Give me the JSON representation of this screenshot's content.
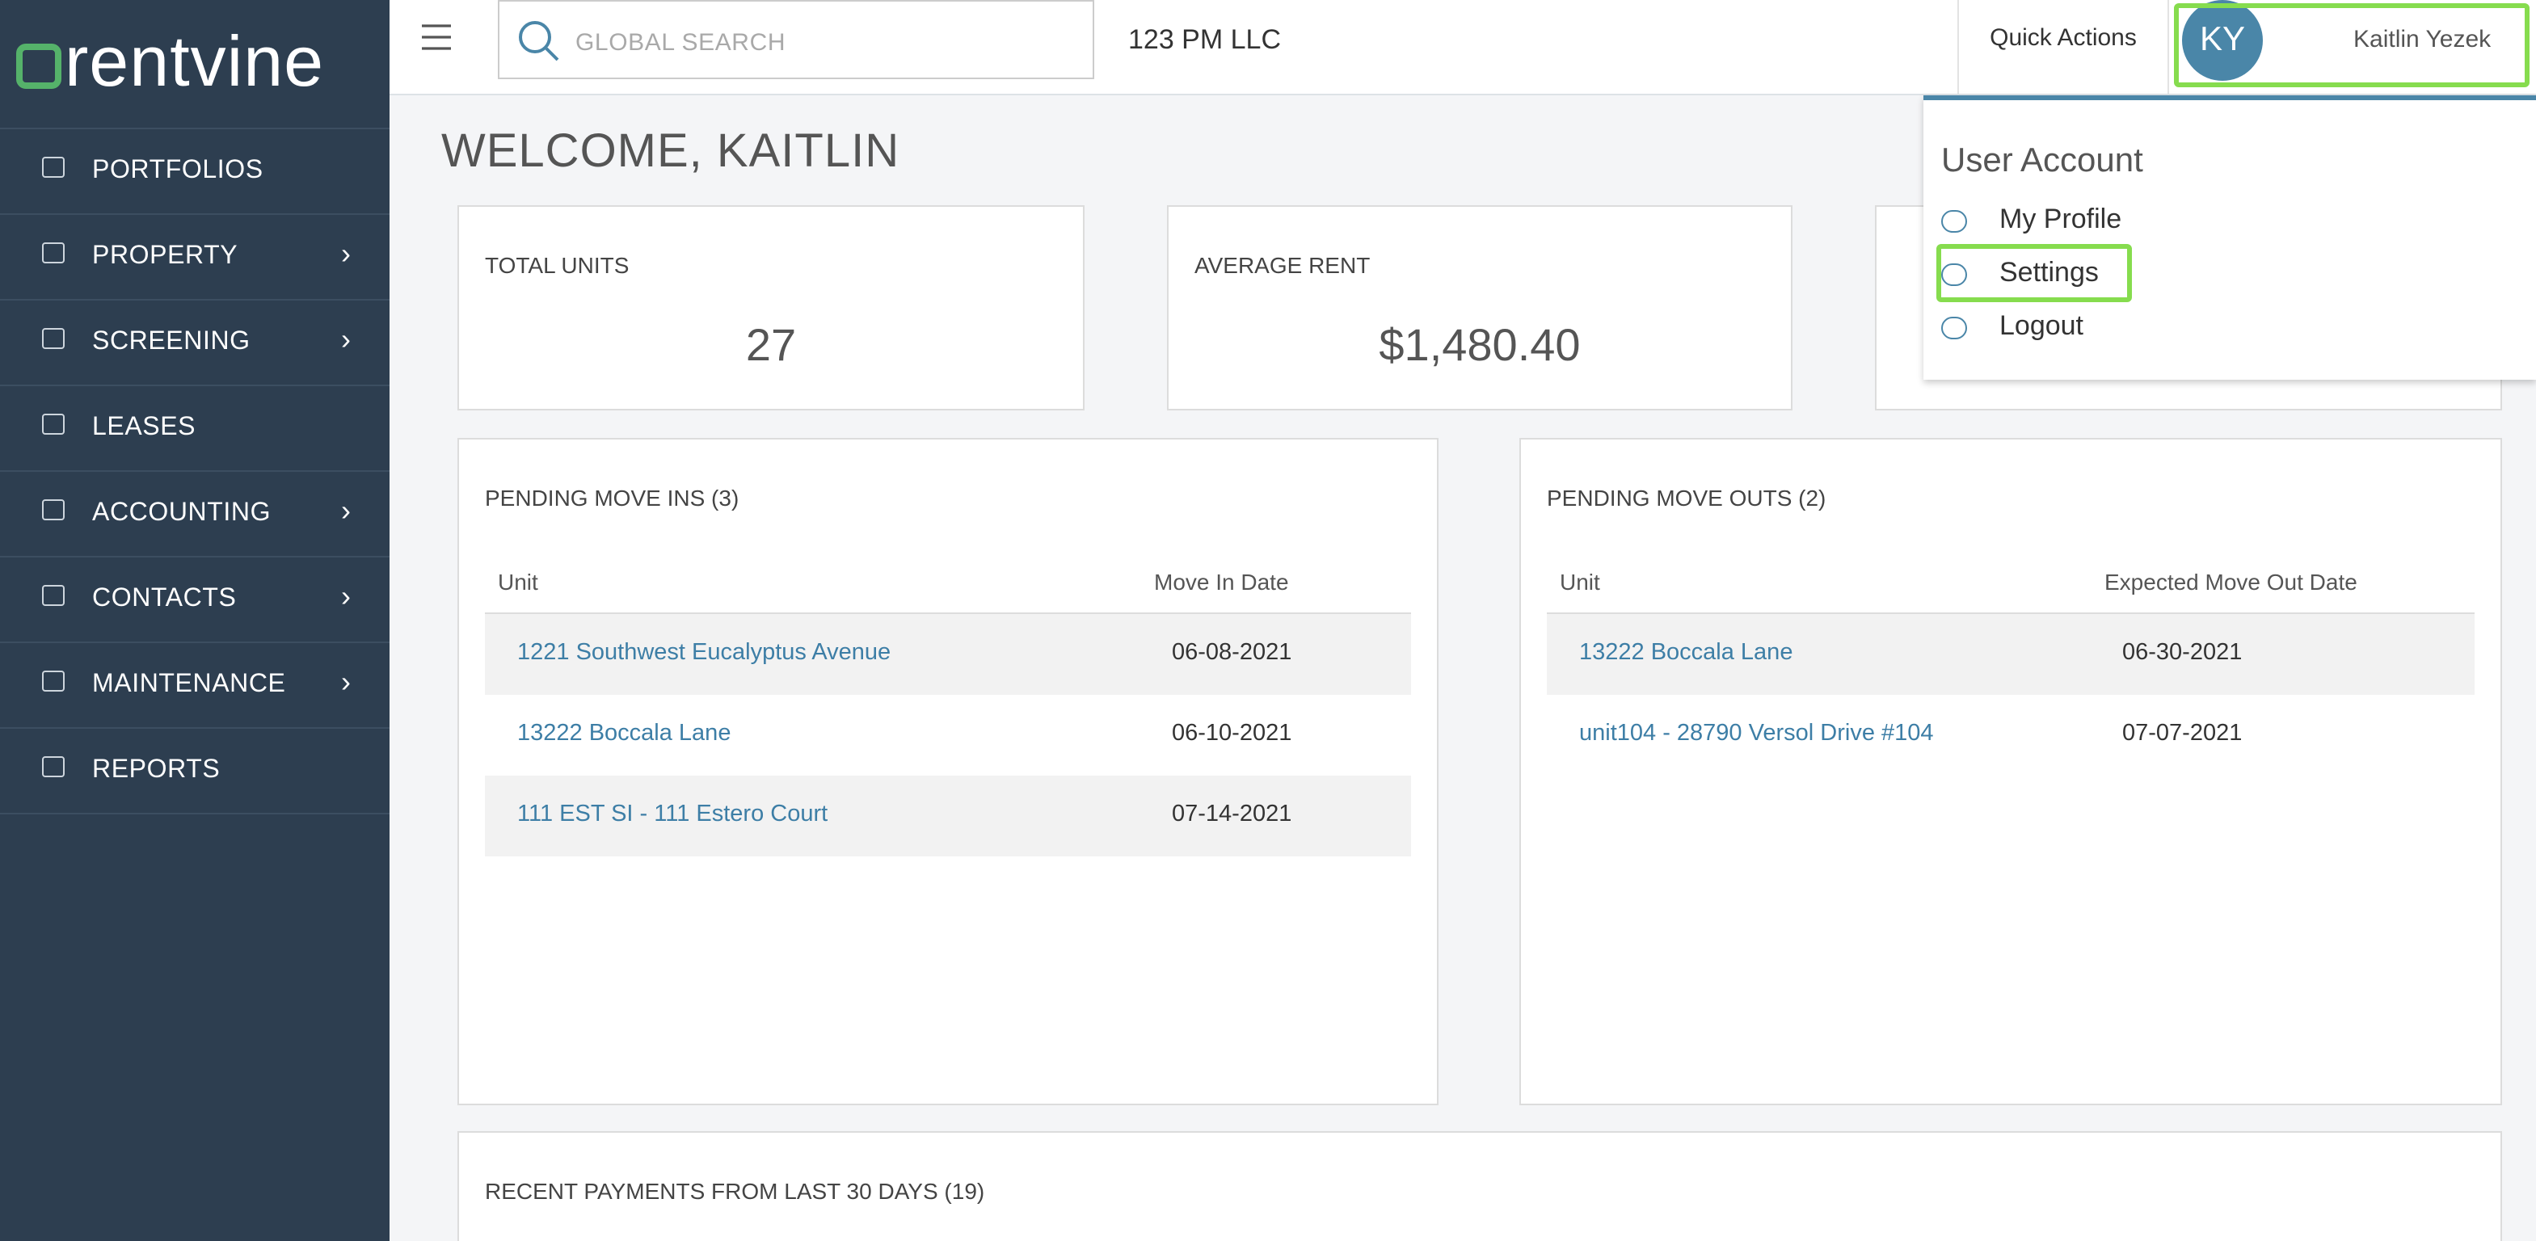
{
  "brand": "rentvine",
  "nav": [
    "PORTFOLIOS",
    "PROPERTY",
    "SCREENING",
    "LEASES",
    "ACCOUNTING",
    "CONTACTS",
    "MAINTENANCE",
    "REPORTS"
  ],
  "nav_has_submenu": [
    false,
    true,
    true,
    false,
    true,
    true,
    true,
    false
  ],
  "topbar": {
    "search_placeholder": "GLOBAL SEARCH",
    "company": "123 PM LLC",
    "quick_actions": "Quick Actions",
    "user_initials": "KY",
    "user_name": "Kaitlin Yezek"
  },
  "welcome": "WELCOME, KAITLIN",
  "stats": [
    {
      "label": "TOTAL UNITS",
      "value": "27"
    },
    {
      "label": "AVERAGE RENT",
      "value": "$1,480.40"
    }
  ],
  "move_ins": {
    "title": "PENDING MOVE INS (3)",
    "columns": [
      "Unit",
      "Move In Date"
    ],
    "rows": [
      [
        "1221 Southwest Eucalyptus Avenue",
        "06-08-2021"
      ],
      [
        "13222 Boccala Lane",
        "06-10-2021"
      ],
      [
        "111 EST SI - 111 Estero Court",
        "07-14-2021"
      ]
    ]
  },
  "move_outs": {
    "title": "PENDING MOVE OUTS (2)",
    "columns": [
      "Unit",
      "Expected Move Out Date"
    ],
    "rows": [
      [
        "13222 Boccala Lane",
        "06-30-2021"
      ],
      [
        "unit104 - 28790 Versol Drive #104",
        "07-07-2021"
      ]
    ]
  },
  "payments": {
    "title": "RECENT PAYMENTS FROM LAST 30 DAYS (19)"
  },
  "dropdown": {
    "title": "User Account",
    "items": [
      "My Profile",
      "Settings",
      "Logout"
    ]
  }
}
